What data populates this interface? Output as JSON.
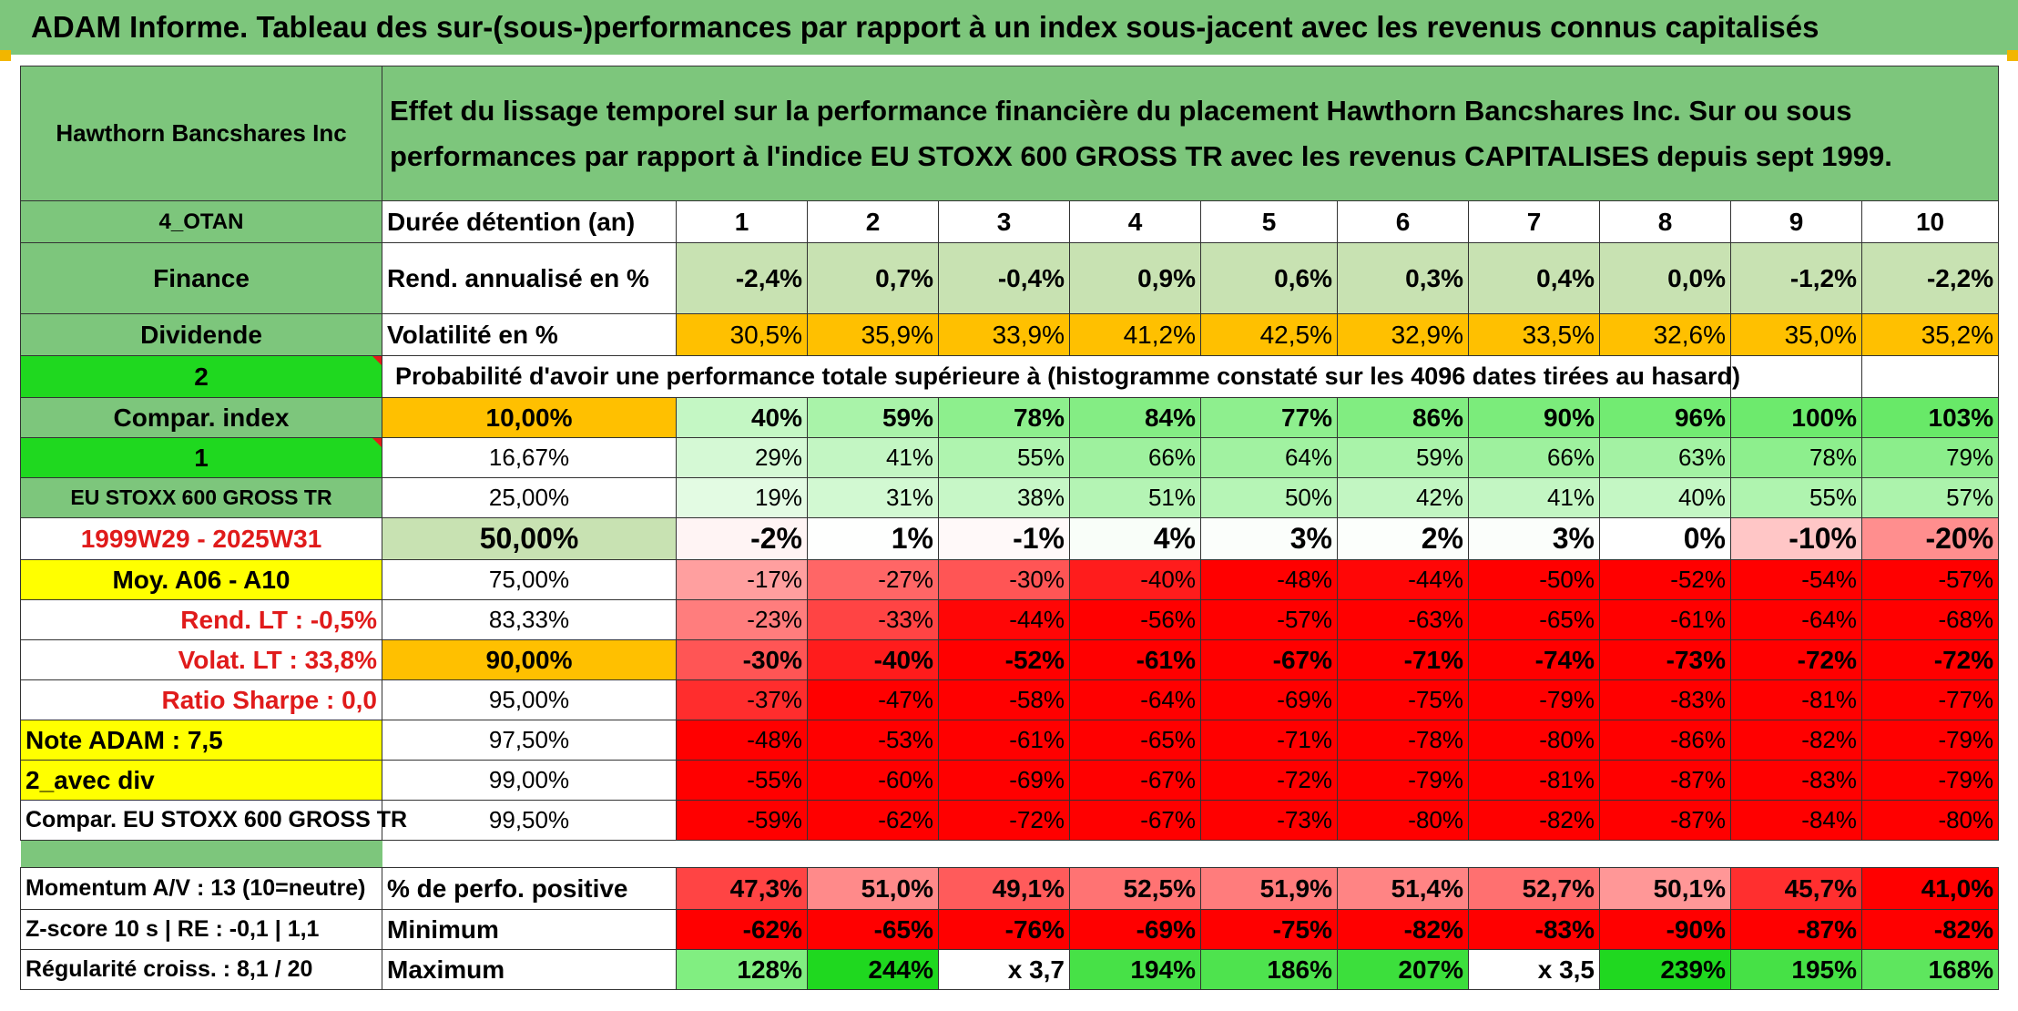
{
  "title": "ADAM Informe. Tableau des sur-(sous-)performances par rapport à un index sous-jacent avec les revenus connus capitalisés",
  "header": {
    "company": "Hawthorn Bancshares Inc",
    "description": "Effet du lissage temporel sur la performance financière du placement Hawthorn Bancshares Inc. Sur ou sous performances par rapport à l'indice EU STOXX 600 GROSS TR avec les revenus CAPITALISES depuis sept 1999."
  },
  "left_labels": [
    "4_OTAN",
    "Finance",
    "Dividende",
    "2",
    "Compar. index",
    "1",
    "EU STOXX 600 GROSS TR",
    "1999W29 - 2025W31",
    "Moy. A06 - A10",
    "Rend. LT :    -0,5%",
    "Volat. LT :    33,8%",
    "Ratio Sharpe :    0,0",
    "Note ADAM : 7,5",
    "2_avec div",
    "Compar. EU STOXX 600 GROSS TR",
    "",
    "Momentum A/V : 13 (10=neutre)",
    "Z-score 10 s | RE : -0,1 | 1,1",
    "Régularité croiss. : 8,1 / 20"
  ],
  "duration": {
    "label": "Durée détention (an)",
    "years": [
      "1",
      "2",
      "3",
      "4",
      "5",
      "6",
      "7",
      "8",
      "9",
      "10"
    ]
  },
  "rend_annualise": {
    "label": "Rend. annualisé en %",
    "values": [
      "-2,4%",
      "0,7%",
      "-0,4%",
      "0,9%",
      "0,6%",
      "0,3%",
      "0,4%",
      "0,0%",
      "-1,2%",
      "-2,2%"
    ]
  },
  "volatilite": {
    "label": "Volatilité en %",
    "values": [
      "30,5%",
      "35,9%",
      "33,9%",
      "41,2%",
      "42,5%",
      "32,9%",
      "33,5%",
      "32,6%",
      "35,0%",
      "35,2%"
    ]
  },
  "probability_caption": "Probabilité d'avoir une performance totale supérieure à (histogramme constaté sur les 4096 dates tirées au hasard)",
  "prob_rows": [
    {
      "pct": "10,00%",
      "values": [
        "40%",
        "59%",
        "78%",
        "84%",
        "77%",
        "86%",
        "90%",
        "96%",
        "100%",
        "103%"
      ]
    },
    {
      "pct": "16,67%",
      "values": [
        "29%",
        "41%",
        "55%",
        "66%",
        "64%",
        "59%",
        "66%",
        "63%",
        "78%",
        "79%"
      ]
    },
    {
      "pct": "25,00%",
      "values": [
        "19%",
        "31%",
        "38%",
        "51%",
        "50%",
        "42%",
        "41%",
        "40%",
        "55%",
        "57%"
      ]
    },
    {
      "pct": "50,00%",
      "values": [
        "-2%",
        "1%",
        "-1%",
        "4%",
        "3%",
        "2%",
        "3%",
        "0%",
        "-10%",
        "-20%"
      ]
    },
    {
      "pct": "75,00%",
      "values": [
        "-17%",
        "-27%",
        "-30%",
        "-40%",
        "-48%",
        "-44%",
        "-50%",
        "-52%",
        "-54%",
        "-57%"
      ]
    },
    {
      "pct": "83,33%",
      "values": [
        "-23%",
        "-33%",
        "-44%",
        "-56%",
        "-57%",
        "-63%",
        "-65%",
        "-61%",
        "-64%",
        "-68%"
      ]
    },
    {
      "pct": "90,00%",
      "values": [
        "-30%",
        "-40%",
        "-52%",
        "-61%",
        "-67%",
        "-71%",
        "-74%",
        "-73%",
        "-72%",
        "-72%"
      ]
    },
    {
      "pct": "95,00%",
      "values": [
        "-37%",
        "-47%",
        "-58%",
        "-64%",
        "-69%",
        "-75%",
        "-79%",
        "-83%",
        "-81%",
        "-77%"
      ]
    },
    {
      "pct": "97,50%",
      "values": [
        "-48%",
        "-53%",
        "-61%",
        "-65%",
        "-71%",
        "-78%",
        "-80%",
        "-86%",
        "-82%",
        "-79%"
      ]
    },
    {
      "pct": "99,00%",
      "values": [
        "-55%",
        "-60%",
        "-69%",
        "-67%",
        "-72%",
        "-79%",
        "-81%",
        "-87%",
        "-83%",
        "-79%"
      ]
    },
    {
      "pct": "99,50%",
      "values": [
        "-59%",
        "-62%",
        "-72%",
        "-67%",
        "-73%",
        "-80%",
        "-82%",
        "-87%",
        "-84%",
        "-80%"
      ]
    }
  ],
  "perfo_positive": {
    "label": "% de perfo. positive",
    "values": [
      "47,3%",
      "51,0%",
      "49,1%",
      "52,5%",
      "51,9%",
      "51,4%",
      "52,7%",
      "50,1%",
      "45,7%",
      "41,0%"
    ]
  },
  "minimum": {
    "label": "Minimum",
    "values": [
      "-62%",
      "-65%",
      "-76%",
      "-69%",
      "-75%",
      "-82%",
      "-83%",
      "-90%",
      "-87%",
      "-82%"
    ]
  },
  "maximum": {
    "label": "Maximum",
    "values": [
      "128%",
      "244%",
      "x 3,7",
      "194%",
      "186%",
      "207%",
      "x 3,5",
      "239%",
      "195%",
      "168%"
    ]
  },
  "colors": {
    "green_header": "#7dc67c",
    "light_green": "#c8e2b2",
    "bright_green": "#1fd81f",
    "yellow": "#ffff00",
    "orange": "#ffc000",
    "red": "#ff0000",
    "label_red": "#e01b1b"
  }
}
